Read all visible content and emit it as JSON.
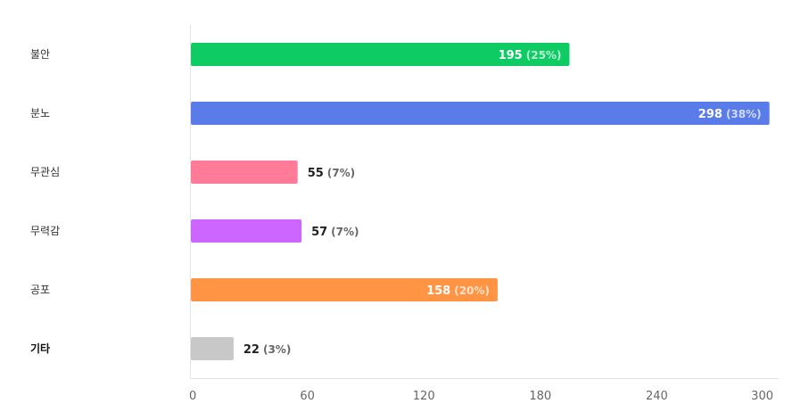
{
  "chart_data": {
    "type": "bar",
    "orientation": "horizontal",
    "categories": [
      "불안",
      "분노",
      "무관심",
      "무력감",
      "공포",
      "기타"
    ],
    "values": [
      195,
      298,
      55,
      57,
      158,
      22
    ],
    "percent_labels": [
      "(25%)",
      "(38%)",
      "(7%)",
      "(7%)",
      "(20%)",
      "(3%)"
    ],
    "colors": [
      "#0ecb63",
      "#5a7ce8",
      "#ff7b98",
      "#cc66ff",
      "#ff9444",
      "#c8c8c8"
    ],
    "label_inside": [
      true,
      true,
      false,
      false,
      true,
      false
    ],
    "bold_category": [
      false,
      false,
      false,
      false,
      false,
      true
    ],
    "xlim": [
      0,
      300
    ],
    "xticks": [
      "0",
      "60",
      "120",
      "180",
      "240",
      "300"
    ],
    "grid": false,
    "legend": "none"
  }
}
